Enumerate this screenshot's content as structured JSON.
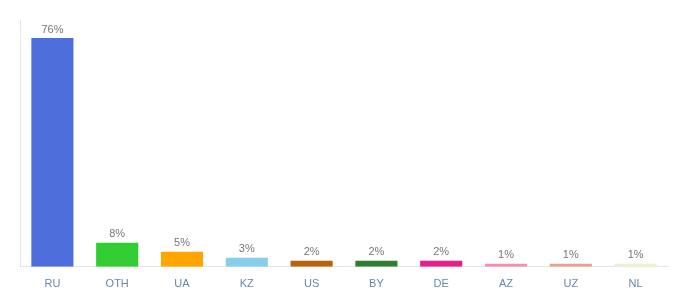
{
  "chart_data": {
    "type": "bar",
    "categories": [
      "RU",
      "OTH",
      "UA",
      "KZ",
      "US",
      "BY",
      "DE",
      "AZ",
      "UZ",
      "NL"
    ],
    "values": [
      76,
      8,
      5,
      3,
      2,
      2,
      2,
      1,
      1,
      1
    ],
    "value_labels": [
      "76%",
      "8%",
      "5%",
      "3%",
      "2%",
      "2%",
      "2%",
      "1%",
      "1%",
      "1%"
    ],
    "data_labels": true,
    "colors": [
      "#4d6edb",
      "#32cd32",
      "#ffa500",
      "#87ceeb",
      "#b8620a",
      "#2e7d32",
      "#e91e8c",
      "#f48fb1",
      "#e8a090",
      "#f0f0d0"
    ],
    "ylim": [
      0,
      82
    ],
    "tick_labels": "x",
    "grid": false
  }
}
